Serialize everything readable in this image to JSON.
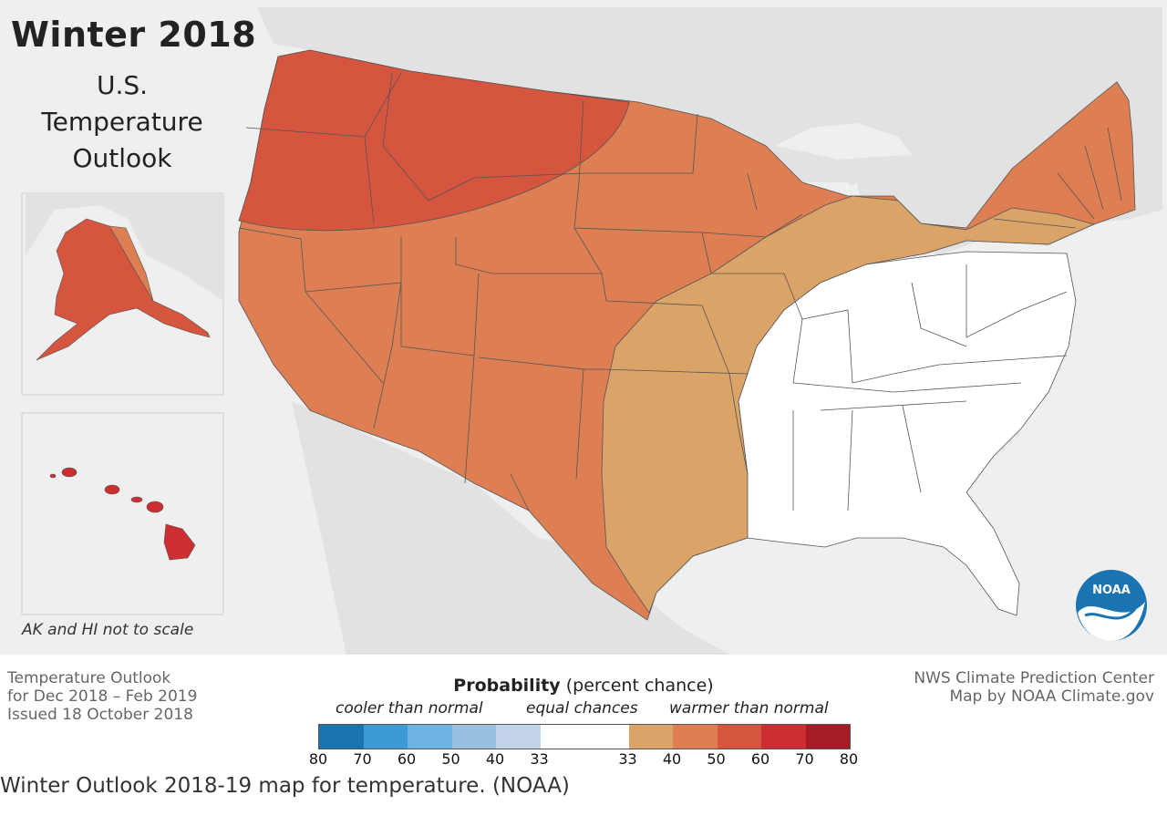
{
  "map": {
    "title": "Winter 2018",
    "subtitle_lines": [
      "U.S.",
      "Temperature",
      "Outlook"
    ],
    "inset_note": "AK and HI not to scale",
    "logo_text": "NOAA",
    "regions": [
      {
        "name": "northwest-tier",
        "category": "warmer than normal",
        "probability": "50-60"
      },
      {
        "name": "west-central-plains-northeast",
        "category": "warmer than normal",
        "probability": "40-50"
      },
      {
        "name": "southern-plains-ohio-valley-mid-atlantic",
        "category": "warmer than normal",
        "probability": "33-40"
      },
      {
        "name": "southeast",
        "category": "equal chances",
        "probability": "33"
      },
      {
        "name": "alaska",
        "category": "warmer than normal",
        "probability": "40-60"
      },
      {
        "name": "hawaii",
        "category": "warmer than normal",
        "probability": "60-70"
      }
    ]
  },
  "footer": {
    "left_lines": [
      "Temperature Outlook",
      "for Dec 2018 – Feb 2019",
      "Issued 18 October 2018"
    ],
    "right_lines": [
      "NWS Climate Prediction Center",
      "Map by NOAA Climate.gov"
    ]
  },
  "legend": {
    "title_bold": "Probability",
    "title_rest": " (percent chance)",
    "cooler": "cooler than normal",
    "equal": "equal chances",
    "warmer": "warmer than normal",
    "cooler_colors": [
      "#1a74b2",
      "#3d9ad6",
      "#6db3e4",
      "#98c0e0",
      "#c3d4e8"
    ],
    "equal_color": "#ffffff",
    "warmer_colors": [
      "#daa468",
      "#dd7f52",
      "#d6553e",
      "#cc2f32",
      "#a61c24"
    ],
    "ticks": [
      "80",
      "70",
      "60",
      "50",
      "40",
      "33",
      "33",
      "40",
      "50",
      "60",
      "70",
      "80"
    ]
  },
  "caption": "Winter Outlook 2018-19 map for temperature. (NOAA)"
}
